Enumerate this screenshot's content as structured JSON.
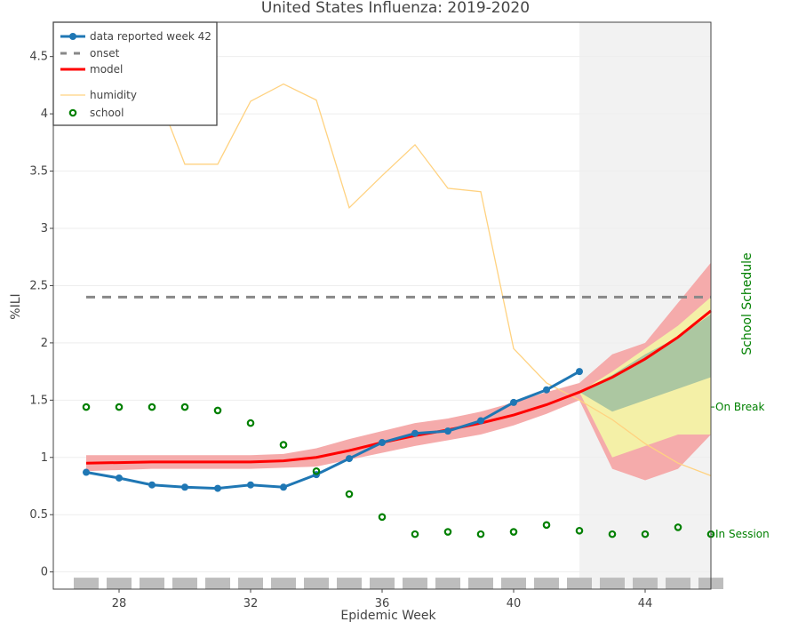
{
  "chart_data": {
    "type": "line",
    "title": "United States Influenza: 2019-2020",
    "xlabel": "Epidemic Week",
    "ylabel": "%ILI",
    "y2label": "School Schedule",
    "xlim": [
      26,
      46
    ],
    "ylim": [
      -0.15,
      4.8
    ],
    "xticks": [
      28,
      32,
      36,
      40,
      44
    ],
    "yticks": [
      0,
      0.5,
      1,
      1.5,
      2,
      2.5,
      3,
      3.5,
      4,
      4.5
    ],
    "y2ticks": [
      {
        "label": "On Break",
        "value": 1.44
      },
      {
        "label": "In Session",
        "value": 0.33
      }
    ],
    "grid": true,
    "legend_position": "top-left",
    "forecast_shade": [
      42,
      46
    ],
    "series": [
      {
        "name": "data reported week 42",
        "color": "#1f77b4",
        "x": [
          27,
          28,
          29,
          30,
          31,
          32,
          33,
          34,
          35,
          36,
          37,
          38,
          39,
          40,
          41,
          42
        ],
        "y": [
          0.87,
          0.82,
          0.76,
          0.74,
          0.73,
          0.76,
          0.74,
          0.85,
          0.99,
          1.13,
          1.21,
          1.23,
          1.32,
          1.48,
          1.59,
          1.75
        ]
      },
      {
        "name": "onset",
        "color": "#888888",
        "x": [
          27,
          46
        ],
        "y": [
          2.4,
          2.4
        ]
      },
      {
        "name": "model",
        "color": "#ff0000",
        "x": [
          27,
          28,
          29,
          30,
          31,
          32,
          33,
          34,
          35,
          36,
          37,
          38,
          39,
          40,
          41,
          42,
          43,
          44,
          45,
          46
        ],
        "y": [
          0.95,
          0.955,
          0.96,
          0.96,
          0.96,
          0.96,
          0.97,
          1.0,
          1.06,
          1.13,
          1.19,
          1.24,
          1.3,
          1.37,
          1.46,
          1.57,
          1.7,
          1.86,
          2.05,
          2.28
        ]
      },
      {
        "name": "humidity",
        "color": "#ffd280",
        "x": [
          28,
          29,
          30,
          31,
          32,
          33,
          34,
          35,
          36,
          37,
          38,
          39,
          40,
          41,
          42,
          43,
          44,
          45,
          46
        ],
        "y": [
          4.7,
          4.3,
          3.56,
          3.56,
          4.11,
          4.26,
          4.12,
          3.18,
          3.46,
          3.73,
          3.35,
          3.32,
          1.95,
          1.65,
          1.5,
          1.33,
          1.12,
          0.95,
          0.84
        ]
      },
      {
        "name": "school",
        "color": "#008000",
        "x": [
          27,
          28,
          29,
          30,
          31,
          32,
          33,
          34,
          35,
          36,
          37,
          38,
          39,
          40,
          41,
          42,
          43,
          44,
          45,
          46
        ],
        "y": [
          1.44,
          1.44,
          1.44,
          1.44,
          1.41,
          1.3,
          1.11,
          0.88,
          0.68,
          0.48,
          0.33,
          0.35,
          0.33,
          0.35,
          0.41,
          0.36,
          0.33,
          0.33,
          0.39,
          0.33
        ]
      }
    ],
    "bands": [
      {
        "color": "#f4a6a6",
        "x": [
          27,
          28,
          29,
          30,
          31,
          32,
          33,
          34,
          35,
          36,
          37,
          38,
          39,
          40,
          41,
          42,
          43,
          44,
          45,
          46
        ],
        "upper": [
          1.02,
          1.02,
          1.02,
          1.02,
          1.02,
          1.02,
          1.03,
          1.08,
          1.16,
          1.23,
          1.3,
          1.34,
          1.4,
          1.48,
          1.57,
          1.65,
          1.9,
          2.0,
          2.35,
          2.7
        ],
        "lower": [
          0.88,
          0.89,
          0.9,
          0.9,
          0.9,
          0.9,
          0.91,
          0.92,
          0.98,
          1.04,
          1.1,
          1.15,
          1.2,
          1.28,
          1.38,
          1.5,
          0.9,
          0.8,
          0.9,
          1.2
        ]
      },
      {
        "color": "#f3f3a6",
        "x": [
          42,
          43,
          44,
          45,
          46
        ],
        "upper": [
          1.57,
          1.75,
          1.95,
          2.15,
          2.4
        ],
        "lower": [
          1.57,
          1.0,
          1.1,
          1.2,
          1.2
        ]
      },
      {
        "color": "#a8c4a0",
        "x": [
          42,
          43,
          44,
          45,
          46
        ],
        "upper": [
          1.57,
          1.72,
          1.9,
          2.05,
          2.25
        ],
        "lower": [
          1.57,
          1.4,
          1.5,
          1.6,
          1.7
        ]
      }
    ],
    "week_markers": [
      27,
      28,
      29,
      30,
      31,
      32,
      33,
      34,
      35,
      36,
      37,
      38,
      39,
      40,
      41,
      42,
      43,
      44,
      45,
      46
    ]
  }
}
